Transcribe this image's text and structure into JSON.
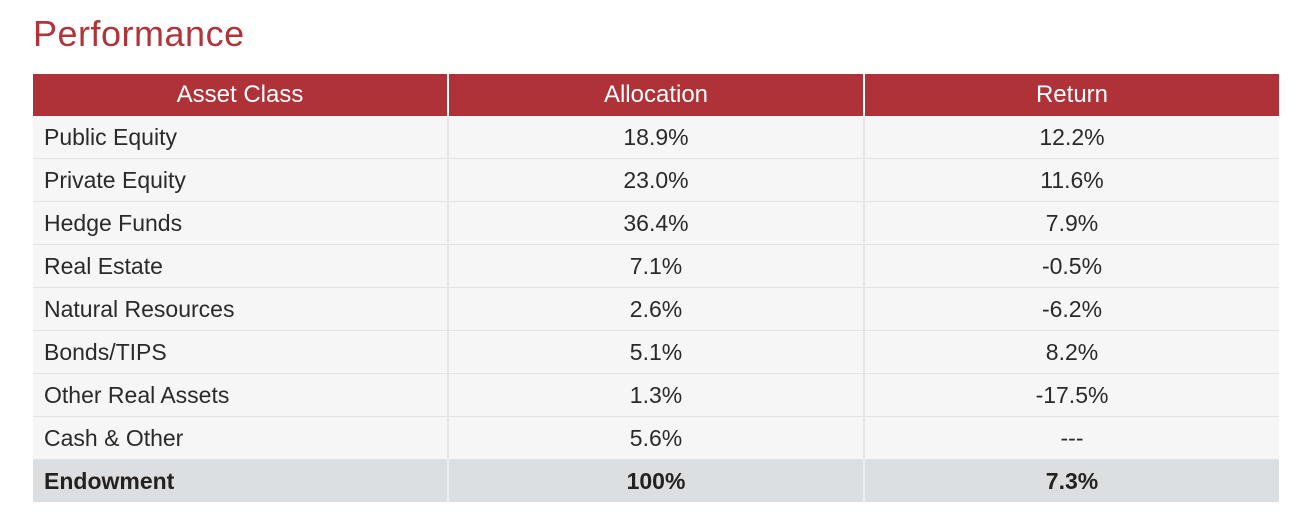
{
  "title": "Performance",
  "table": {
    "headers": [
      "Asset Class",
      "Allocation",
      "Return"
    ],
    "rows": [
      {
        "asset": "Public Equity",
        "allocation": "18.9%",
        "return": "12.2%"
      },
      {
        "asset": "Private Equity",
        "allocation": "23.0%",
        "return": "11.6%"
      },
      {
        "asset": "Hedge Funds",
        "allocation": "36.4%",
        "return": "7.9%"
      },
      {
        "asset": "Real Estate",
        "allocation": "7.1%",
        "return": "-0.5%"
      },
      {
        "asset": "Natural Resources",
        "allocation": "2.6%",
        "return": "-6.2%"
      },
      {
        "asset": "Bonds/TIPS",
        "allocation": "5.1%",
        "return": "8.2%"
      },
      {
        "asset": "Other Real Assets",
        "allocation": "1.3%",
        "return": "-17.5%"
      },
      {
        "asset": "Cash & Other",
        "allocation": "5.6%",
        "return": "---"
      }
    ],
    "total": {
      "asset": "Endowment",
      "allocation": "100%",
      "return": "7.3%"
    }
  },
  "colors": {
    "header_bg": "#ae3238",
    "title": "#b0343a",
    "row_bg": "#f6f6f6",
    "total_bg": "#dcdfe1"
  }
}
